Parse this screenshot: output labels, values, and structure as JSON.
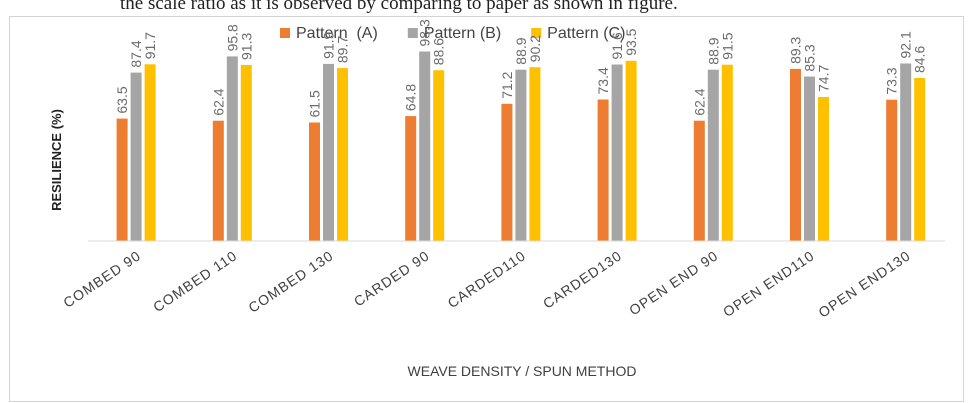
{
  "top_text": "the scale ratio as it is observed by comparing to paper as shown in figure.",
  "chart_data": {
    "type": "bar",
    "title": "",
    "xlabel": "WEAVE DENSITY / SPUN METHOD",
    "ylabel": "RESILIENCE (%)",
    "ylim": [
      0,
      110
    ],
    "grid": false,
    "legend_position": "top",
    "categories": [
      "COMBED  90",
      "COMBED  110",
      "COMBED  130",
      "CARDED 90",
      "CARDED110",
      "CARDED130",
      "OPEN END 90",
      "OPEN END110",
      "OPEN END130"
    ],
    "series": [
      {
        "name": "Pattern  (A)",
        "color": "#ed7d31",
        "values": [
          63.5,
          62.4,
          61.5,
          64.8,
          71.2,
          73.4,
          62.4,
          89.3,
          73.3
        ]
      },
      {
        "name": "Pattern (B)",
        "color": "#a5a5a5",
        "values": [
          87.4,
          95.8,
          91.9,
          98.3,
          88.9,
          91.6,
          88.9,
          85.3,
          92.1
        ]
      },
      {
        "name": "Pattern (C)",
        "color": "#ffc000",
        "values": [
          91.7,
          91.3,
          89.7,
          88.6,
          90.2,
          93.5,
          91.5,
          74.7,
          84.6
        ]
      }
    ]
  }
}
